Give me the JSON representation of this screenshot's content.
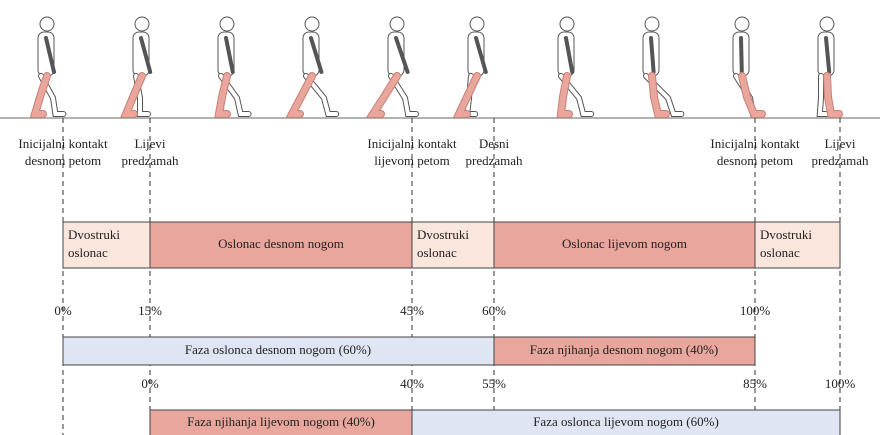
{
  "events": [
    {
      "lines": [
        "Inicijalni kontakt",
        "desnom petom"
      ]
    },
    {
      "lines": [
        "Lijevi",
        "predzamah"
      ]
    },
    {
      "lines": [
        "Inicijalni kontakt",
        "lijevom petom"
      ]
    },
    {
      "lines": [
        "Desni",
        "predzamah"
      ]
    },
    {
      "lines": [
        "Inicijalni kontakt",
        "desnom petom"
      ]
    },
    {
      "lines": [
        "Lijevi",
        "predzamah"
      ]
    }
  ],
  "support_phases": [
    {
      "lines": [
        "Dvostruki",
        "oslonac"
      ]
    },
    {
      "lines": [
        "Oslonac desnom nogom"
      ]
    },
    {
      "lines": [
        "Dvostruki",
        "oslonac"
      ]
    },
    {
      "lines": [
        "Oslonac lijevom nogom"
      ]
    },
    {
      "lines": [
        "Dvostruki",
        "oslonac"
      ]
    }
  ],
  "right_leg_scale": [
    "0%",
    "15%",
    "45%",
    "60%",
    "100%"
  ],
  "right_leg_phases": [
    "Faza oslonca desnom nogom (60%)",
    "Faza njihanja desnom nogom (40%)"
  ],
  "left_leg_scale": [
    "0%",
    "40%",
    "55%",
    "85%",
    "100%"
  ],
  "left_leg_phases": [
    "Faza njihanja lijevom nogom (40%)",
    "Faza oslonca lijevom nogom (60%)"
  ]
}
